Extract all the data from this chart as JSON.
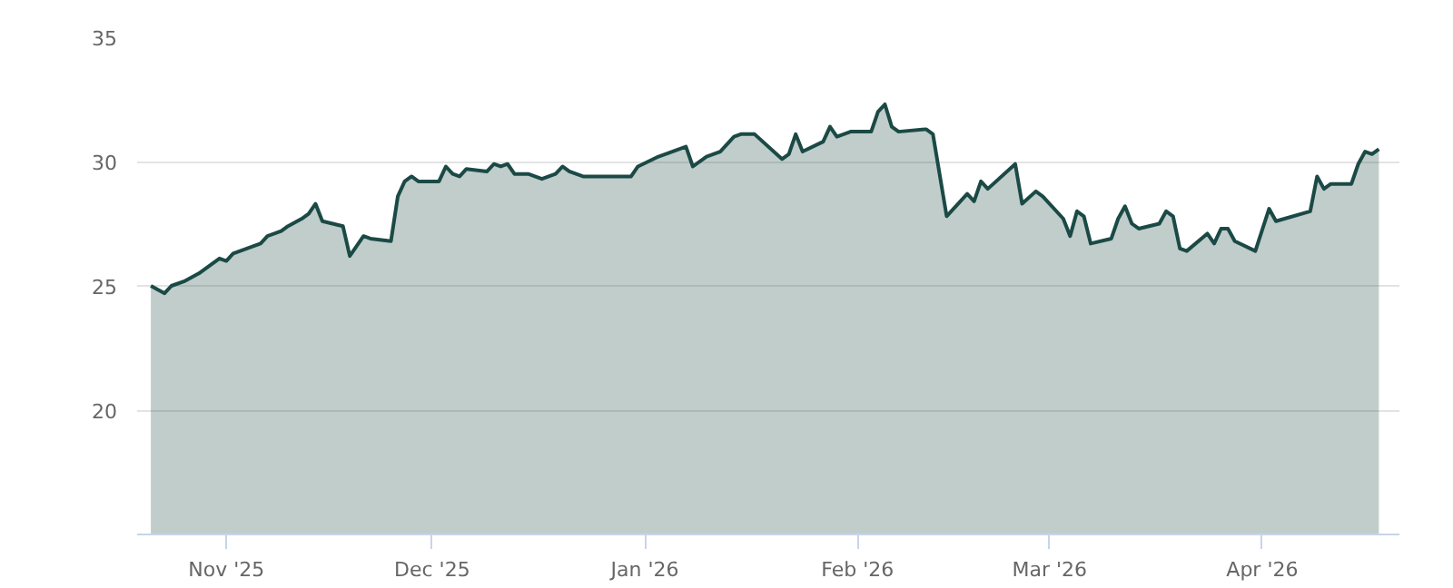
{
  "chart_data": {
    "type": "area",
    "grid": "y",
    "xlim": [
      "2025-10-19",
      "2026-04-21"
    ],
    "xticks": [
      {
        "value": "2025-11-01",
        "label": "Nov '25"
      },
      {
        "value": "2025-12-01",
        "label": "Dec '25"
      },
      {
        "value": "2026-01-01",
        "label": "Jan '26"
      },
      {
        "value": "2026-02-01",
        "label": "Feb '26"
      },
      {
        "value": "2026-03-01",
        "label": "Mar '26"
      },
      {
        "value": "2026-04-01",
        "label": "Apr '26"
      }
    ],
    "ylim": [
      15,
      35
    ],
    "yticks": [
      20,
      25,
      30,
      35
    ],
    "x": [
      "2025-10-21",
      "2025-10-23",
      "2025-10-24",
      "2025-10-26",
      "2025-10-28",
      "2025-10-29",
      "2025-10-31",
      "2025-11-01",
      "2025-11-02",
      "2025-11-04",
      "2025-11-06",
      "2025-11-07",
      "2025-11-09",
      "2025-11-10",
      "2025-11-12",
      "2025-11-13",
      "2025-11-14",
      "2025-11-15",
      "2025-11-18",
      "2025-11-19",
      "2025-11-21",
      "2025-11-22",
      "2025-11-25",
      "2025-11-26",
      "2025-11-27",
      "2025-11-28",
      "2025-11-29",
      "2025-12-02",
      "2025-12-03",
      "2025-12-04",
      "2025-12-05",
      "2025-12-06",
      "2025-12-09",
      "2025-12-10",
      "2025-12-11",
      "2025-12-12",
      "2025-12-13",
      "2025-12-15",
      "2025-12-17",
      "2025-12-19",
      "2025-12-20",
      "2025-12-21",
      "2025-12-23",
      "2025-12-30",
      "2025-12-31",
      "2026-01-03",
      "2026-01-07",
      "2026-01-08",
      "2026-01-10",
      "2026-01-12",
      "2026-01-14",
      "2026-01-15",
      "2026-01-17",
      "2026-01-21",
      "2026-01-22",
      "2026-01-23",
      "2026-01-24",
      "2026-01-27",
      "2026-01-28",
      "2026-01-29",
      "2026-01-31",
      "2026-02-03",
      "2026-02-04",
      "2026-02-05",
      "2026-02-06",
      "2026-02-07",
      "2026-02-11",
      "2026-02-12",
      "2026-02-14",
      "2026-02-17",
      "2026-02-18",
      "2026-02-19",
      "2026-02-20",
      "2026-02-24",
      "2026-02-25",
      "2026-02-27",
      "2026-02-28",
      "2026-03-03",
      "2026-03-04",
      "2026-03-05",
      "2026-03-06",
      "2026-03-07",
      "2026-03-10",
      "2026-03-11",
      "2026-03-12",
      "2026-03-13",
      "2026-03-14",
      "2026-03-17",
      "2026-03-18",
      "2026-03-19",
      "2026-03-20",
      "2026-03-21",
      "2026-03-24",
      "2026-03-25",
      "2026-03-26",
      "2026-03-27",
      "2026-03-28",
      "2026-03-31",
      "2026-04-02",
      "2026-04-03",
      "2026-04-08",
      "2026-04-09",
      "2026-04-10",
      "2026-04-11",
      "2026-04-14",
      "2026-04-15",
      "2026-04-16",
      "2026-04-17",
      "2026-04-18"
    ],
    "series": [
      {
        "color": "#1b4a46",
        "values": [
          25.0,
          24.7,
          25.0,
          25.2,
          25.5,
          25.7,
          26.1,
          26.0,
          26.3,
          26.5,
          26.7,
          27.0,
          27.2,
          27.4,
          27.7,
          27.9,
          28.3,
          27.6,
          27.4,
          26.2,
          27.0,
          26.9,
          26.8,
          28.6,
          29.2,
          29.4,
          29.2,
          29.2,
          29.8,
          29.5,
          29.4,
          29.7,
          29.6,
          29.9,
          29.8,
          29.9,
          29.5,
          29.5,
          29.3,
          29.5,
          29.8,
          29.6,
          29.4,
          29.4,
          29.8,
          30.2,
          30.6,
          29.8,
          30.2,
          30.4,
          31.0,
          31.1,
          31.1,
          30.1,
          30.3,
          31.1,
          30.4,
          30.8,
          31.4,
          31.0,
          31.2,
          31.2,
          32.0,
          32.3,
          31.4,
          31.2,
          31.3,
          31.1,
          27.8,
          28.7,
          28.4,
          29.2,
          28.9,
          29.9,
          28.3,
          28.8,
          28.6,
          27.7,
          27.0,
          28.0,
          27.8,
          26.7,
          26.9,
          27.7,
          28.2,
          27.5,
          27.3,
          27.5,
          28.0,
          27.8,
          26.5,
          26.4,
          27.1,
          26.7,
          27.3,
          27.3,
          26.8,
          26.4,
          28.1,
          27.6,
          28.0,
          29.4,
          28.9,
          29.1,
          29.1,
          29.9,
          30.4,
          30.3,
          30.5
        ]
      }
    ]
  }
}
